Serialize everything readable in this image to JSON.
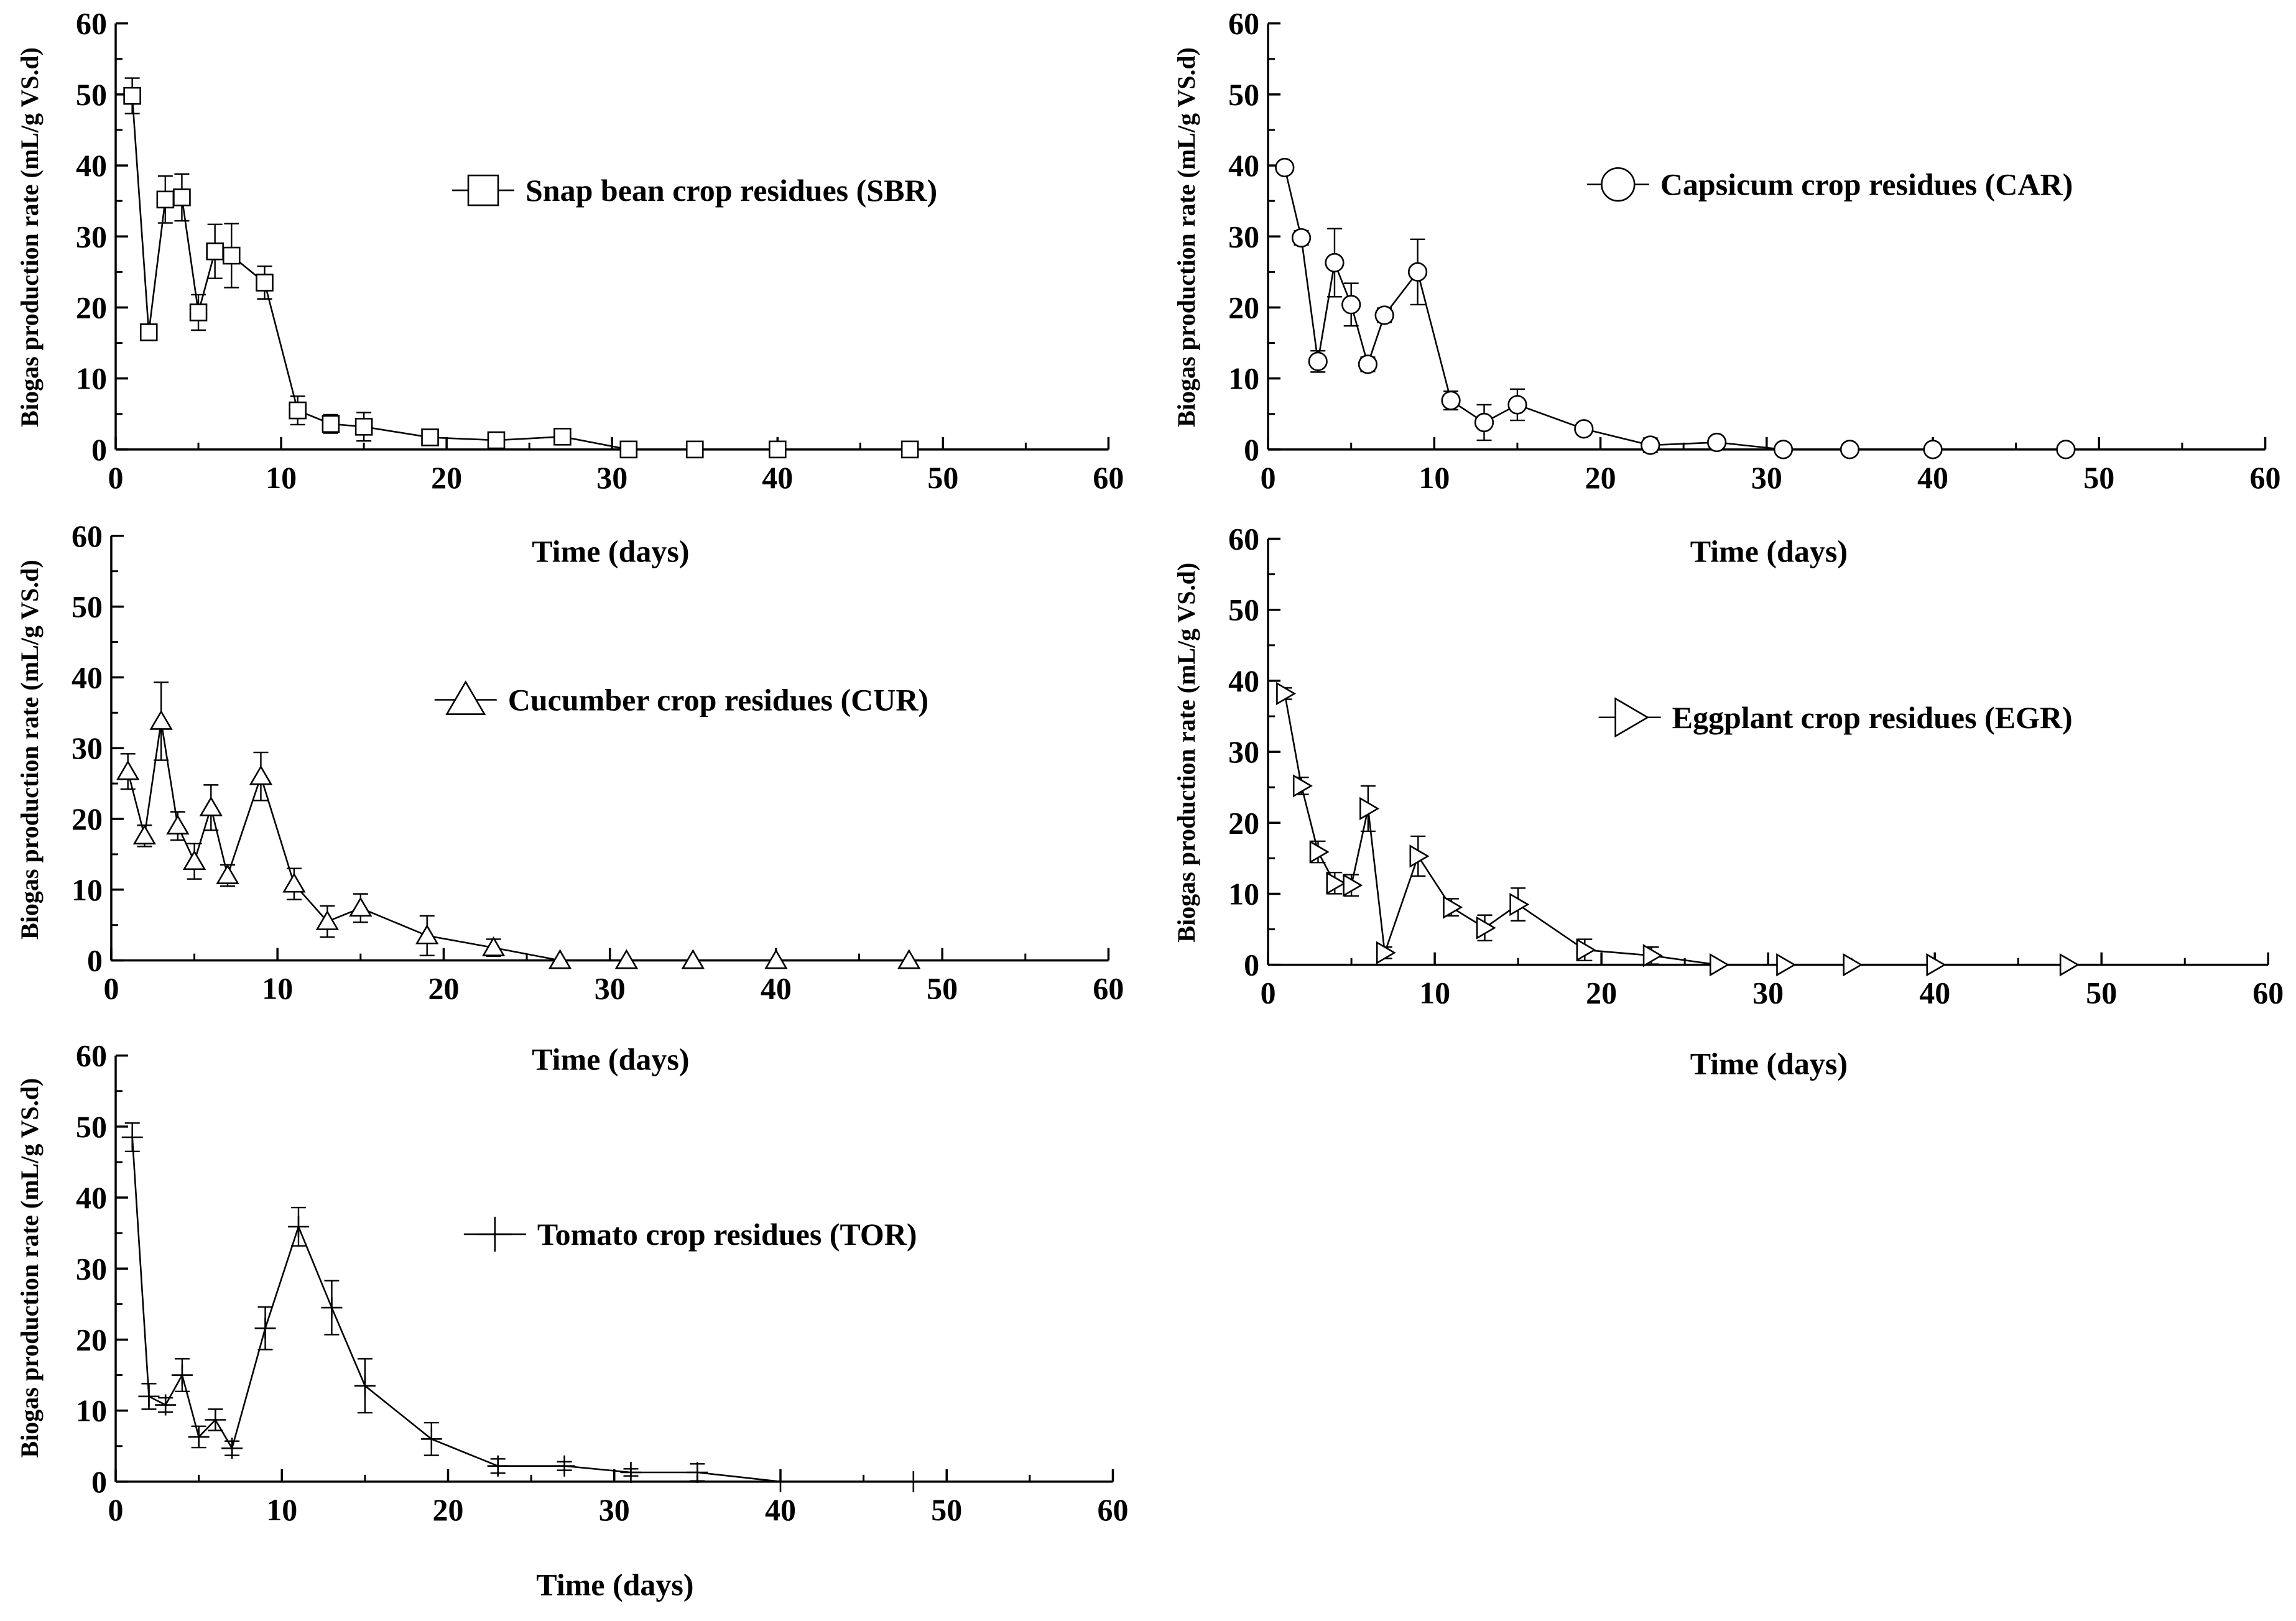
{
  "chart_data": [
    {
      "type": "scatter",
      "marker": "square",
      "xlabel": "Time (days)",
      "ylabel": "Biogas production rate (mL/g VS.d)",
      "xlim": [
        0,
        60
      ],
      "ylim": [
        0,
        60
      ],
      "xticks": [
        0,
        10,
        20,
        30,
        40,
        50,
        60
      ],
      "yticks": [
        0,
        10,
        20,
        30,
        40,
        50,
        60
      ],
      "legend": "Snap bean crop residues (SBR)",
      "legend_position": "top-right",
      "series": [
        {
          "name": "Snap bean crop residues (SBR)",
          "x": [
            1,
            2,
            3,
            4,
            5,
            6,
            7,
            9,
            11,
            13,
            15,
            19,
            23,
            27,
            31,
            35,
            40,
            48
          ],
          "y": [
            49.8,
            16.5,
            35.2,
            35.5,
            19.3,
            27.9,
            27.3,
            23.5,
            5.5,
            3.6,
            3.2,
            1.7,
            1.3,
            1.8,
            0,
            0,
            0,
            0
          ],
          "err": [
            2.5,
            0.8,
            3.3,
            3.3,
            2.5,
            3.8,
            4.5,
            2.3,
            2.0,
            1.3,
            2.0,
            0.8,
            0.6,
            0.7,
            0,
            0,
            0,
            0
          ]
        }
      ]
    },
    {
      "type": "scatter",
      "marker": "circle",
      "xlabel": "Time (days)",
      "ylabel": "Biogas production rate (mL/g VS.d)",
      "xlim": [
        0,
        60
      ],
      "ylim": [
        0,
        60
      ],
      "xticks": [
        0,
        10,
        20,
        30,
        40,
        50,
        60
      ],
      "yticks": [
        0,
        10,
        20,
        30,
        40,
        50,
        60
      ],
      "legend": "Capsicum  crop residues (CAR)",
      "legend_position": "top-right",
      "series": [
        {
          "name": "Capsicum  crop residues (CAR)",
          "x": [
            1,
            2,
            3,
            4,
            5,
            6,
            7,
            9,
            11,
            13,
            15,
            19,
            23,
            27,
            31,
            35,
            40,
            48
          ],
          "y": [
            39.7,
            29.8,
            12.4,
            26.3,
            20.4,
            12.0,
            18.9,
            25.0,
            6.9,
            3.8,
            6.3,
            2.9,
            0.6,
            1.0,
            0,
            0,
            0,
            0
          ],
          "err": [
            0.5,
            1.0,
            1.5,
            4.8,
            3.0,
            1.0,
            1.0,
            4.6,
            1.3,
            2.5,
            2.2,
            0.8,
            1.0,
            0.6,
            0,
            0,
            0,
            0
          ]
        }
      ]
    },
    {
      "type": "scatter",
      "marker": "triangle-up",
      "xlabel": "Time (days)",
      "ylabel": "Biogas production rate (mL/g VS.d)",
      "xlim": [
        0,
        60
      ],
      "ylim": [
        0,
        60
      ],
      "xticks": [
        0,
        10,
        20,
        30,
        40,
        50,
        60
      ],
      "yticks": [
        0,
        10,
        20,
        30,
        40,
        50,
        60
      ],
      "legend": "Cucumber  crop residues (CUR)",
      "legend_position": "top-right",
      "series": [
        {
          "name": "Cucumber  crop residues (CUR)",
          "x": [
            1,
            2,
            3,
            4,
            5,
            6,
            7,
            9,
            11,
            13,
            15,
            19,
            23,
            27,
            31,
            35,
            40,
            48
          ],
          "y": [
            26.7,
            17.6,
            33.8,
            19.0,
            14.0,
            21.6,
            12.0,
            26.0,
            10.8,
            5.5,
            7.4,
            3.5,
            1.8,
            0,
            0,
            0,
            0,
            0
          ],
          "err": [
            2.5,
            1.5,
            5.5,
            2.0,
            2.5,
            3.2,
            1.5,
            3.4,
            2.2,
            2.2,
            2.0,
            2.8,
            1.2,
            0,
            0,
            0,
            0,
            0
          ]
        }
      ]
    },
    {
      "type": "scatter",
      "marker": "triangle-right",
      "xlabel": "Time (days)",
      "ylabel": "Biogas production rate (mL/g VS.d)",
      "xlim": [
        0,
        60
      ],
      "ylim": [
        0,
        60
      ],
      "xticks": [
        0,
        10,
        20,
        30,
        40,
        50,
        60
      ],
      "yticks": [
        0,
        10,
        20,
        30,
        40,
        50,
        60
      ],
      "legend": "Eggplant  crop residues (EGR)",
      "legend_position": "top-right",
      "series": [
        {
          "name": "Eggplant  crop residues (EGR)",
          "x": [
            1,
            2,
            3,
            4,
            5,
            6,
            7,
            9,
            11,
            13,
            15,
            19,
            23,
            27,
            31,
            35,
            40,
            48
          ],
          "y": [
            38.2,
            25.2,
            15.9,
            11.5,
            11.2,
            22.0,
            1.7,
            15.3,
            8.1,
            5.2,
            8.5,
            2.1,
            1.3,
            0,
            0,
            0,
            0,
            0
          ],
          "err": [
            0.8,
            1.2,
            1.5,
            1.5,
            1.5,
            3.2,
            0.8,
            2.8,
            1.2,
            1.8,
            2.3,
            1.5,
            1.2,
            0,
            0,
            0,
            0,
            0
          ]
        }
      ]
    },
    {
      "type": "scatter",
      "marker": "plus",
      "xlabel": "Time (days)",
      "ylabel": "Biogas production rate (mL/g VS.d)",
      "xlim": [
        0,
        60
      ],
      "ylim": [
        0,
        60
      ],
      "xticks": [
        0,
        10,
        20,
        30,
        40,
        50,
        60
      ],
      "yticks": [
        0,
        10,
        20,
        30,
        40,
        50,
        60
      ],
      "legend": "Tomato  crop residues (TOR)",
      "legend_position": "center-right",
      "series": [
        {
          "name": "Tomato  crop residues (TOR)",
          "x": [
            1,
            2,
            3,
            4,
            5,
            6,
            7,
            9,
            11,
            13,
            15,
            19,
            23,
            27,
            31,
            35,
            40,
            48
          ],
          "y": [
            48.5,
            12.0,
            10.8,
            15.0,
            6.3,
            8.7,
            4.7,
            21.6,
            35.9,
            24.5,
            13.5,
            6.0,
            2.2,
            2.2,
            1.3,
            1.3,
            0,
            0
          ],
          "err": [
            2.0,
            1.8,
            1.0,
            2.3,
            1.5,
            1.5,
            1.0,
            3.0,
            2.7,
            3.8,
            3.8,
            2.3,
            1.0,
            0.6,
            0.5,
            1.2,
            0,
            0
          ]
        }
      ]
    }
  ]
}
